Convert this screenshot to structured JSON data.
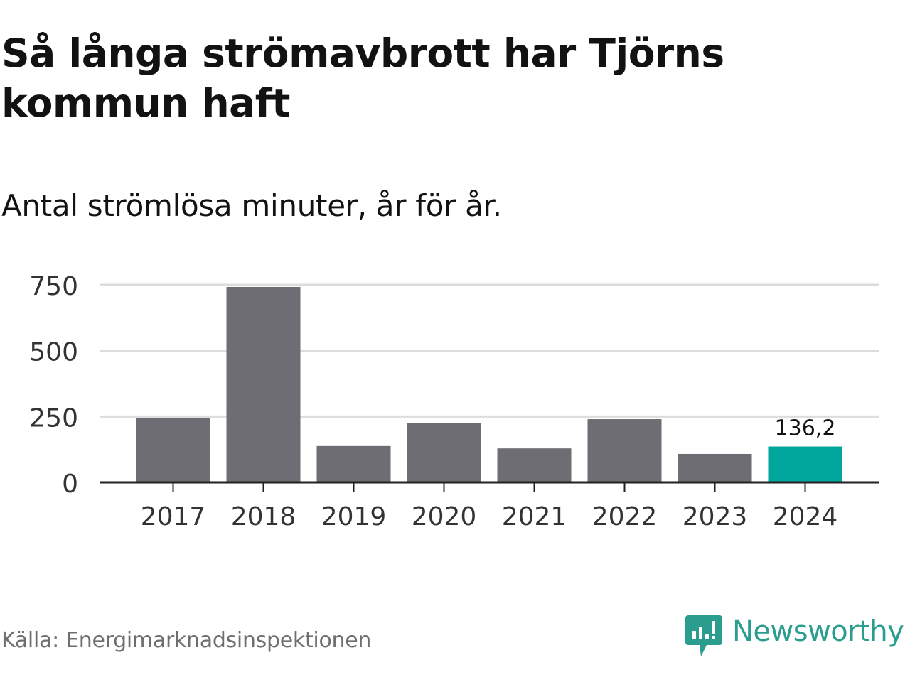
{
  "title": "Så långa strömavbrott har Tjörns kommun haft",
  "subtitle": "Antal strömlösa minuter, år för år.",
  "source": "Källa: Energimarknadsinspektionen",
  "brand": "Newsworthy",
  "colors": {
    "bar": "#6e6d73",
    "highlight": "#00a69c",
    "grid": "#dcdcdc",
    "axis": "#222222",
    "brand": "#2a9d8f"
  },
  "chart_data": {
    "type": "bar",
    "title": "Så långa strömavbrott har Tjörns kommun haft",
    "subtitle": "Antal strömlösa minuter, år för år.",
    "xlabel": "",
    "ylabel": "",
    "categories": [
      "2017",
      "2018",
      "2019",
      "2020",
      "2021",
      "2022",
      "2023",
      "2024"
    ],
    "values": [
      243,
      742,
      138,
      224,
      129,
      240,
      108,
      136.2
    ],
    "highlight_index": 7,
    "data_labels": [
      {
        "index": 7,
        "text": "136,2"
      }
    ],
    "ylim": [
      0,
      750
    ],
    "yticks": [
      0,
      250,
      500,
      750
    ],
    "ytick_labels": [
      "0",
      "250",
      "500",
      "750"
    ],
    "grid": true
  }
}
